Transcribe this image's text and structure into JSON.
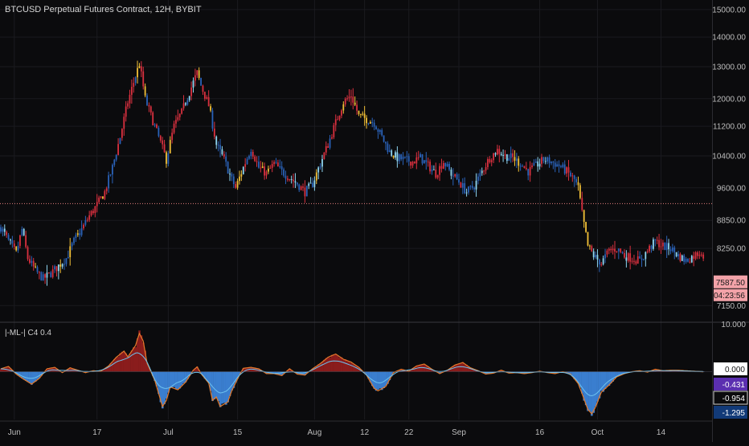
{
  "header": {
    "title": "BTCUSD Perpetual Futures Contract, 12H, BYBIT"
  },
  "indicator": {
    "title": "|-ML-| C4 0.4"
  },
  "colors": {
    "background": "#0b0b0d",
    "grid": "#1b1b1f",
    "axis_text": "#bdbdbd",
    "candle_red": "#d9303f",
    "candle_blue": "#2a62b8",
    "candle_light_blue": "#8fd6f2",
    "candle_yellow": "#f2c037",
    "hline": "#e5807f",
    "price_badge": "#f2a2a8",
    "osc_pos_fill": "#8a1c1c",
    "osc_neg_fill": "#3a7ecf",
    "osc_line": "#e47a2c",
    "osc_signal": "#6ec3ef",
    "badge_zero": "#ffffff",
    "badge_purple": "#5b2fb0",
    "badge_dark": "#0b0b0d",
    "badge_navy": "#123a78"
  },
  "chart_data": [
    {
      "type": "candlestick",
      "title": "BTCUSD Perpetual Futures Contract, 12H, BYBIT",
      "x_ticks": [
        "Jun",
        "17",
        "Jul",
        "15",
        "Aug",
        "12",
        "22",
        "Sep",
        "16",
        "Oct",
        "14"
      ],
      "y_ticks": [
        "15000.00",
        "14000.00",
        "13000.00",
        "12000.00",
        "11200.00",
        "10400.00",
        "9600.00",
        "8850.00",
        "8250.00",
        "7150.00"
      ],
      "y_scale": "log",
      "ylim": [
        6900,
        15300
      ],
      "horizontal_line": 9230,
      "last_price_label": "7587.50",
      "countdown_label": "04:23:56",
      "anchors": [
        [
          0,
          8700
        ],
        [
          4,
          8400
        ],
        [
          8,
          8150
        ],
        [
          11,
          8650
        ],
        [
          14,
          8050
        ],
        [
          18,
          7800
        ],
        [
          22,
          7650
        ],
        [
          26,
          7750
        ],
        [
          30,
          7900
        ],
        [
          34,
          8050
        ],
        [
          38,
          8400
        ],
        [
          42,
          8650
        ],
        [
          46,
          8950
        ],
        [
          50,
          9200
        ],
        [
          54,
          9500
        ],
        [
          58,
          10100
        ],
        [
          62,
          10900
        ],
        [
          66,
          11900
        ],
        [
          70,
          12700
        ],
        [
          72,
          13100
        ],
        [
          75,
          12000
        ],
        [
          78,
          11500
        ],
        [
          82,
          10900
        ],
        [
          86,
          10300
        ],
        [
          90,
          11200
        ],
        [
          94,
          11600
        ],
        [
          98,
          12200
        ],
        [
          102,
          12800
        ],
        [
          104,
          12400
        ],
        [
          108,
          11800
        ],
        [
          112,
          10700
        ],
        [
          116,
          10300
        ],
        [
          120,
          9800
        ],
        [
          122,
          9600
        ],
        [
          126,
          10100
        ],
        [
          130,
          10600
        ],
        [
          134,
          10100
        ],
        [
          138,
          9950
        ],
        [
          142,
          10200
        ],
        [
          146,
          10000
        ],
        [
          150,
          9850
        ],
        [
          154,
          9700
        ],
        [
          158,
          9500
        ],
        [
          162,
          9700
        ],
        [
          166,
          10200
        ],
        [
          170,
          10700
        ],
        [
          174,
          11300
        ],
        [
          178,
          11900
        ],
        [
          182,
          12100
        ],
        [
          186,
          11500
        ],
        [
          190,
          11400
        ],
        [
          194,
          11300
        ],
        [
          198,
          10900
        ],
        [
          202,
          10500
        ],
        [
          206,
          10350
        ],
        [
          210,
          10300
        ],
        [
          214,
          10250
        ],
        [
          218,
          10350
        ],
        [
          222,
          10150
        ],
        [
          226,
          9950
        ],
        [
          230,
          10250
        ],
        [
          234,
          9950
        ],
        [
          238,
          9750
        ],
        [
          242,
          9500
        ],
        [
          246,
          9650
        ],
        [
          250,
          10000
        ],
        [
          254,
          10350
        ],
        [
          258,
          10550
        ],
        [
          262,
          10400
        ],
        [
          266,
          10350
        ],
        [
          270,
          10200
        ],
        [
          274,
          10000
        ],
        [
          278,
          10150
        ],
        [
          282,
          10300
        ],
        [
          286,
          10250
        ],
        [
          290,
          10150
        ],
        [
          294,
          10000
        ],
        [
          298,
          9800
        ],
        [
          300,
          9600
        ],
        [
          302,
          9000
        ],
        [
          305,
          8300
        ],
        [
          308,
          8100
        ],
        [
          312,
          7950
        ],
        [
          316,
          8200
        ],
        [
          320,
          8250
        ],
        [
          324,
          8100
        ],
        [
          328,
          8050
        ],
        [
          332,
          8000
        ],
        [
          336,
          8200
        ],
        [
          340,
          8400
        ],
        [
          344,
          8300
        ],
        [
          348,
          8250
        ],
        [
          352,
          8100
        ],
        [
          356,
          8000
        ],
        [
          360,
          8100
        ],
        [
          364,
          8200
        ],
        [
          366,
          7950
        ],
        [
          368,
          7700
        ],
        [
          370,
          7587
        ]
      ],
      "candle_colors": [
        "blue",
        "blue",
        "light_blue",
        "red",
        "blue",
        "light_blue",
        "blue",
        "red",
        "yellow",
        "blue",
        "red",
        "blue",
        "light_blue",
        "red",
        "red",
        "red",
        "blue",
        "red",
        "yellow",
        "blue",
        "red",
        "blue",
        "blue",
        "red",
        "light_blue",
        "red",
        "blue",
        "red",
        "blue",
        "red",
        "light_blue",
        "yellow",
        "light_blue",
        "blue",
        "blue",
        "blue",
        "yellow",
        "blue",
        "blue",
        "blue",
        "yellow",
        "blue",
        "blue",
        "red",
        "blue",
        "red",
        "red",
        "red",
        "red",
        "red",
        "red",
        "red",
        "red",
        "yellow",
        "red",
        "red",
        "blue",
        "blue",
        "blue",
        "blue",
        "blue",
        "red",
        "blue",
        "red",
        "red",
        "red",
        "red",
        "red",
        "red",
        "red",
        "blue",
        "yellow",
        "yellow",
        "red",
        "red",
        "yellow",
        "blue",
        "red",
        "red",
        "red",
        "blue",
        "red",
        "blue",
        "red",
        "red",
        "red",
        "yellow",
        "blue",
        "yellow",
        "red",
        "red",
        "red",
        "red",
        "red",
        "red",
        "red",
        "light_blue",
        "blue",
        "light_blue",
        "red",
        "light_blue",
        "red",
        "red",
        "yellow",
        "blue",
        "red",
        "red",
        "red",
        "red",
        "yellow",
        "blue",
        "red",
        "light_blue",
        "blue",
        "blue",
        "light_blue",
        "red",
        "blue",
        "blue",
        "light_blue",
        "blue",
        "blue",
        "red",
        "yellow",
        "yellow",
        "yellow",
        "light_blue",
        "red",
        "blue",
        "blue",
        "blue",
        "red",
        "red",
        "red",
        "blue",
        "red",
        "yellow",
        "red",
        "red",
        "yellow",
        "red",
        "red",
        "red",
        "blue",
        "red",
        "blue",
        "blue",
        "blue",
        "blue",
        "red",
        "red",
        "light_blue",
        "red",
        "light_blue",
        "blue",
        "blue",
        "red",
        "red",
        "red",
        "blue",
        "light_blue",
        "light_blue",
        "blue",
        "light_blue",
        "yellow",
        "light_blue",
        "blue",
        "light_blue",
        "red",
        "red",
        "red",
        "blue",
        "red",
        "red",
        "red",
        "red",
        "red",
        "red",
        "yellow",
        "red",
        "red",
        "red",
        "red",
        "red",
        "yellow",
        "red",
        "yellow",
        "yellow",
        "yellow",
        "yellow",
        "yellow",
        "blue",
        "yellow",
        "blue",
        "blue",
        "blue",
        "blue",
        "blue",
        "blue",
        "blue",
        "blue",
        "blue",
        "blue",
        "light_blue",
        "yellow",
        "light_blue",
        "light_blue",
        "blue",
        "blue",
        "blue",
        "blue",
        "blue",
        "blue",
        "red",
        "red",
        "red",
        "red",
        "red",
        "blue",
        "blue",
        "blue",
        "blue",
        "red",
        "red",
        "blue",
        "light_blue",
        "red",
        "red",
        "red",
        "red",
        "red",
        "blue",
        "blue",
        "blue",
        "light_blue",
        "blue",
        "red",
        "blue",
        "blue",
        "red",
        "blue",
        "blue",
        "light_blue",
        "blue",
        "blue",
        "blue",
        "blue",
        "light_blue",
        "blue",
        "blue",
        "light_blue",
        "red",
        "red",
        "red",
        "red",
        "red",
        "red",
        "light_blue",
        "red",
        "red",
        "light_blue",
        "light_blue",
        "red",
        "light_blue",
        "blue",
        "blue",
        "red",
        "yellow",
        "blue",
        "yellow",
        "blue",
        "blue",
        "red",
        "red",
        "blue",
        "red",
        "red",
        "blue",
        "blue",
        "light_blue",
        "light_blue",
        "red",
        "blue",
        "light_blue",
        "blue",
        "blue",
        "blue",
        "blue",
        "blue",
        "blue",
        "blue",
        "blue",
        "blue",
        "blue",
        "red",
        "red",
        "blue",
        "red",
        "blue",
        "blue",
        "yellow",
        "yellow",
        "red",
        "yellow",
        "yellow",
        "yellow",
        "yellow",
        "red",
        "light_blue",
        "blue",
        "light_blue",
        "blue",
        "red",
        "light_blue",
        "blue",
        "red",
        "red",
        "red",
        "red",
        "red",
        "red",
        "blue",
        "red",
        "blue",
        "red",
        "light_blue",
        "red",
        "red",
        "red",
        "red",
        "red",
        "red",
        "blue",
        "blue",
        "blue",
        "light_blue",
        "red",
        "red",
        "blue",
        "light_blue",
        "blue",
        "red",
        "red",
        "red",
        "red",
        "blue",
        "blue",
        "light_blue",
        "blue",
        "blue",
        "blue",
        "light_blue",
        "blue",
        "red",
        "light_blue",
        "blue",
        "blue",
        "blue",
        "red",
        "light_blue",
        "red",
        "red",
        "red",
        "red",
        "red",
        "red"
      ]
    },
    {
      "type": "area",
      "title": "|-ML-| C4 0.4",
      "y_ticks": [
        "10.000"
      ],
      "value_labels": [
        "0.000",
        "-0.431",
        "-0.954",
        "-1.295"
      ],
      "ylim": [
        -10,
        10
      ],
      "baseline": 0,
      "oscillator_anchors": [
        [
          0,
          0.6
        ],
        [
          4,
          1.1
        ],
        [
          8,
          -0.5
        ],
        [
          12,
          -1.6
        ],
        [
          16,
          -2.6
        ],
        [
          20,
          -1.4
        ],
        [
          24,
          0.6
        ],
        [
          28,
          0.9
        ],
        [
          32,
          -0.2
        ],
        [
          36,
          0.8
        ],
        [
          40,
          0.3
        ],
        [
          44,
          -0.2
        ],
        [
          48,
          0.2
        ],
        [
          52,
          0.1
        ],
        [
          56,
          1.2
        ],
        [
          60,
          3.0
        ],
        [
          64,
          4.3
        ],
        [
          66,
          3.1
        ],
        [
          70,
          5.5
        ],
        [
          72,
          8.0
        ],
        [
          74,
          6.4
        ],
        [
          76,
          1.8
        ],
        [
          80,
          -1.8
        ],
        [
          84,
          -7.3
        ],
        [
          86,
          -6.0
        ],
        [
          88,
          -3.2
        ],
        [
          92,
          -3.8
        ],
        [
          96,
          -2.2
        ],
        [
          100,
          0.3
        ],
        [
          102,
          1.0
        ],
        [
          104,
          -0.4
        ],
        [
          108,
          -2.4
        ],
        [
          110,
          -6.0
        ],
        [
          112,
          -5.3
        ],
        [
          114,
          -7.3
        ],
        [
          118,
          -6.3
        ],
        [
          120,
          -4.0
        ],
        [
          124,
          -0.7
        ],
        [
          126,
          0.7
        ],
        [
          130,
          0.9
        ],
        [
          134,
          0.6
        ],
        [
          138,
          -0.4
        ],
        [
          142,
          -0.4
        ],
        [
          146,
          -0.8
        ],
        [
          150,
          0.6
        ],
        [
          154,
          -0.5
        ],
        [
          158,
          -0.7
        ],
        [
          162,
          0.6
        ],
        [
          166,
          1.7
        ],
        [
          170,
          3.0
        ],
        [
          174,
          3.7
        ],
        [
          178,
          2.6
        ],
        [
          182,
          2.0
        ],
        [
          186,
          0.9
        ],
        [
          190,
          -0.7
        ],
        [
          194,
          -3.5
        ],
        [
          196,
          -4.0
        ],
        [
          200,
          -3.1
        ],
        [
          204,
          -0.2
        ],
        [
          208,
          0.5
        ],
        [
          212,
          0.1
        ],
        [
          216,
          1.2
        ],
        [
          220,
          1.6
        ],
        [
          224,
          0.5
        ],
        [
          228,
          -0.4
        ],
        [
          232,
          0.3
        ],
        [
          236,
          1.4
        ],
        [
          240,
          1.9
        ],
        [
          244,
          0.8
        ],
        [
          248,
          0.2
        ],
        [
          252,
          -0.5
        ],
        [
          256,
          -0.3
        ],
        [
          260,
          0.3
        ],
        [
          264,
          -0.3
        ],
        [
          268,
          -0.2
        ],
        [
          272,
          -0.4
        ],
        [
          276,
          -0.2
        ],
        [
          280,
          0.1
        ],
        [
          284,
          -0.2
        ],
        [
          288,
          -0.4
        ],
        [
          292,
          0.0
        ],
        [
          296,
          -0.5
        ],
        [
          300,
          -2.5
        ],
        [
          302,
          -4.6
        ],
        [
          305,
          -7.9
        ],
        [
          307,
          -8.8
        ],
        [
          309,
          -7.4
        ],
        [
          312,
          -4.3
        ],
        [
          316,
          -2.8
        ],
        [
          320,
          -1.1
        ],
        [
          324,
          -0.4
        ],
        [
          328,
          0.0
        ],
        [
          332,
          0.2
        ],
        [
          336,
          -0.1
        ],
        [
          340,
          0.5
        ],
        [
          344,
          0.2
        ],
        [
          348,
          0.3
        ],
        [
          352,
          0.3
        ],
        [
          356,
          0.2
        ],
        [
          360,
          0.1
        ],
        [
          364,
          0.0
        ],
        [
          368,
          -0.1
        ],
        [
          370,
          0.0
        ]
      ]
    }
  ]
}
